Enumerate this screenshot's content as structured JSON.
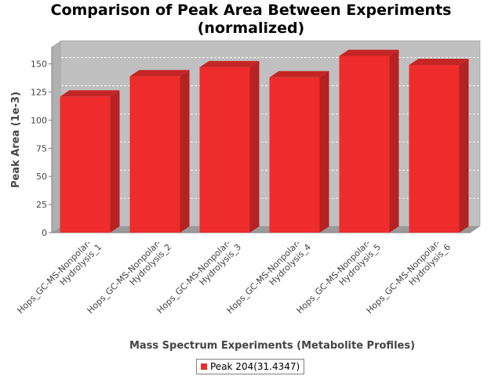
{
  "chart_data": {
    "type": "bar",
    "title_lines": [
      "Comparison of Peak Area Between Experiments",
      "(normalized)"
    ],
    "xlabel": "Mass Spectrum Experiments (Metabolite Profiles)",
    "ylabel": "Peak Area (1e-3)",
    "categories": [
      [
        "Hops_GC-MS-Nonpolar-",
        "Hydrolysis_1"
      ],
      [
        "Hops_GC-MS-Nonpolar-",
        "Hydrolysis_2"
      ],
      [
        "Hops_GC-MS-Nonpolar-",
        "Hydrolysis_3"
      ],
      [
        "Hops_GC-MS-Nonpolar-",
        "Hydrolysis_4"
      ],
      [
        "Hops_GC-MS-Nonpolar-",
        "Hydrolysis_5"
      ],
      [
        "Hops_GC-MS-Nonpolar-",
        "Hydrolysis_6"
      ]
    ],
    "series": [
      {
        "name": "Peak 204(31.4347)",
        "values": [
          121,
          139,
          147,
          138,
          157,
          149
        ]
      }
    ],
    "ylim": [
      0,
      165
    ],
    "yticks": [
      0,
      25,
      50,
      75,
      100,
      125,
      150
    ],
    "grid": true,
    "legend_position": "bottom",
    "colors": {
      "bar": "#ee2c2c",
      "bar_side": "#b52222",
      "bar_top": "#c42525",
      "plot_bg": "#c0c0c0",
      "plot_wall": "#9a9a9a"
    }
  }
}
